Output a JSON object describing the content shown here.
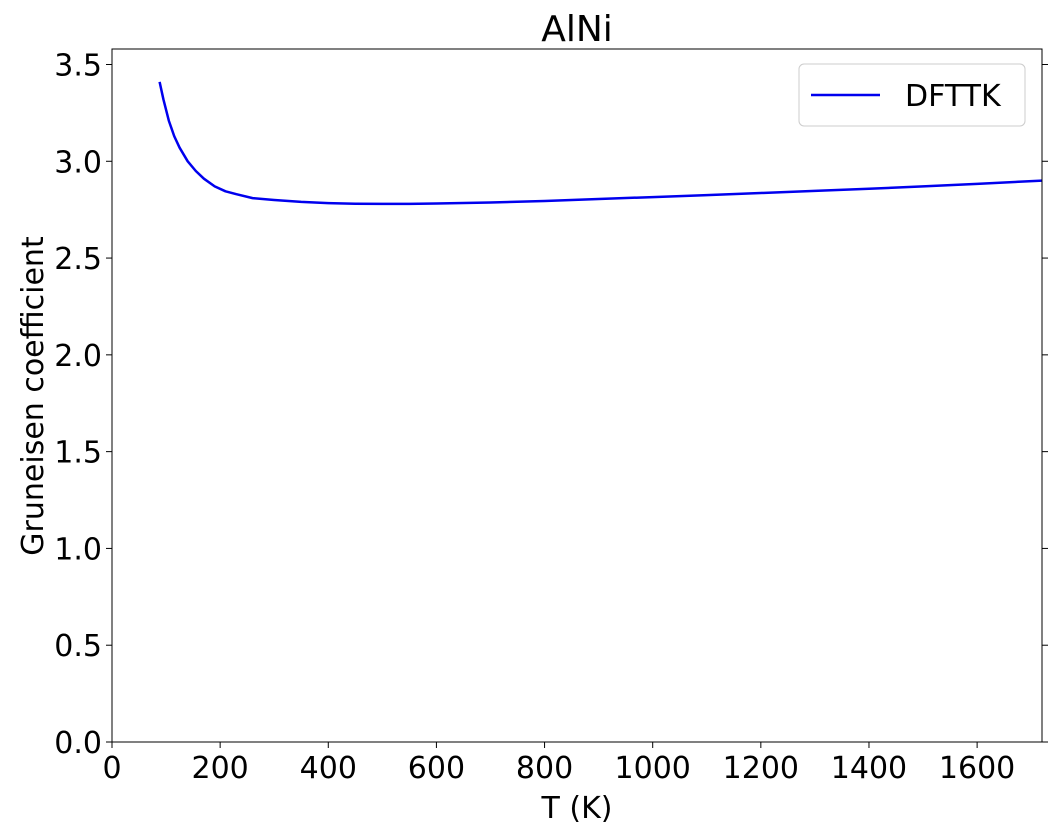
{
  "chart_data": {
    "type": "line",
    "title": "AlNi",
    "xlabel": "T (K)",
    "ylabel": "Gruneisen coefficient",
    "xlim": [
      0,
      1720
    ],
    "ylim": [
      0,
      3.58
    ],
    "xticks": [
      0,
      200,
      400,
      600,
      800,
      1000,
      1200,
      1400,
      1600
    ],
    "xtick_labels": [
      "0",
      "200",
      "400",
      "600",
      "800",
      "1000",
      "1200",
      "1400",
      "1600"
    ],
    "yticks": [
      0.0,
      0.5,
      1.0,
      1.5,
      2.0,
      2.5,
      3.0,
      3.5
    ],
    "ytick_labels": [
      "0.0",
      "0.5",
      "1.0",
      "1.5",
      "2.0",
      "2.5",
      "3.0",
      "3.5"
    ],
    "grid": false,
    "legend_position": "top-right",
    "series": [
      {
        "name": "DFTTK",
        "color": "#0000ee",
        "x": [
          88,
          95,
          105,
          115,
          125,
          140,
          155,
          170,
          190,
          210,
          230,
          260,
          300,
          350,
          400,
          450,
          500,
          550,
          600,
          700,
          800,
          900,
          1000,
          1100,
          1200,
          1300,
          1400,
          1500,
          1600,
          1720
        ],
        "y": [
          3.41,
          3.32,
          3.21,
          3.13,
          3.07,
          3.0,
          2.95,
          2.91,
          2.87,
          2.845,
          2.83,
          2.81,
          2.8,
          2.79,
          2.784,
          2.781,
          2.78,
          2.78,
          2.782,
          2.787,
          2.795,
          2.805,
          2.815,
          2.825,
          2.836,
          2.847,
          2.858,
          2.87,
          2.883,
          2.9
        ]
      }
    ]
  }
}
